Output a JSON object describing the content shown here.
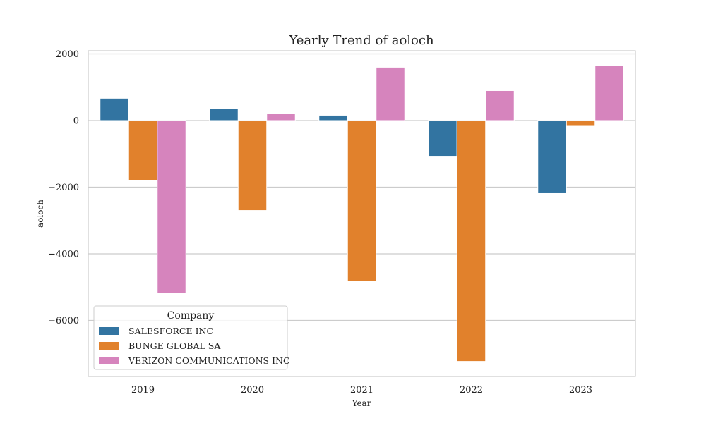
{
  "chart_data": {
    "type": "bar",
    "title": "Yearly Trend of aoloch",
    "xlabel": "Year",
    "ylabel": "aoloch",
    "categories": [
      "2019",
      "2020",
      "2021",
      "2022",
      "2023"
    ],
    "ylim": [
      -7700,
      2100
    ],
    "yticks": [
      2000,
      0,
      -2000,
      -4000,
      -6000
    ],
    "ytick_labels": [
      "2000",
      "0",
      "−2000",
      "−4000",
      "−6000"
    ],
    "grid": true,
    "legend": {
      "title": "Company",
      "placement": "lower-left"
    },
    "series": [
      {
        "name": "SALESFORCE INC",
        "color": "#3274a1",
        "values": [
          670,
          350,
          160,
          -1070,
          -2190
        ]
      },
      {
        "name": "BUNGE GLOBAL SA",
        "color": "#e1812c",
        "values": [
          -1790,
          -2700,
          -4820,
          -7230,
          -170
        ]
      },
      {
        "name": "VERIZON COMMUNICATIONS INC",
        "color": "#d684bd",
        "values": [
          -5180,
          220,
          1600,
          900,
          1650
        ]
      }
    ]
  }
}
